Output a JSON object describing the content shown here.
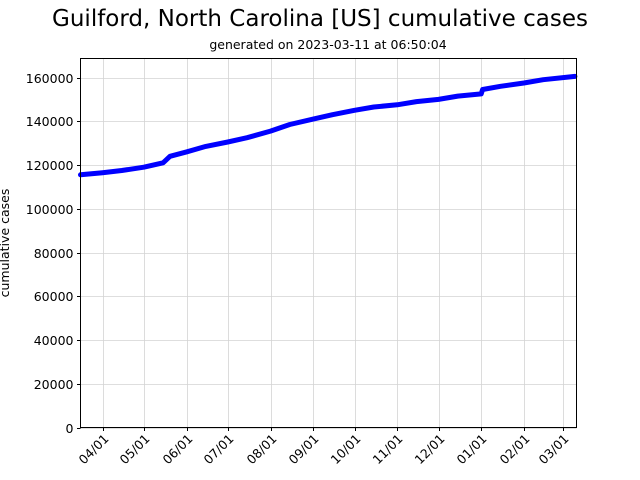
{
  "chart_data": {
    "type": "line",
    "title": "Guilford, North Carolina [US] cumulative cases",
    "subtitle": "generated on 2023-03-11 at 06:50:04",
    "xlabel": "",
    "ylabel": "cumulative cases",
    "ylim": [
      0,
      168000
    ],
    "grid": true,
    "legend": null,
    "line_color": "#0000ff",
    "x_ticks": [
      "04/01",
      "05/01",
      "06/01",
      "07/01",
      "08/01",
      "09/01",
      "10/01",
      "11/01",
      "12/01",
      "01/01",
      "02/01",
      "03/01"
    ],
    "y_ticks": [
      0,
      20000,
      40000,
      60000,
      80000,
      100000,
      120000,
      140000,
      160000
    ],
    "series": [
      {
        "name": "cumulative cases",
        "x": [
          "2022-03-16",
          "2022-04-01",
          "2022-04-15",
          "2022-05-01",
          "2022-05-15",
          "2022-05-20",
          "2022-06-01",
          "2022-06-15",
          "2022-07-01",
          "2022-07-15",
          "2022-08-01",
          "2022-08-15",
          "2022-09-01",
          "2022-09-15",
          "2022-10-01",
          "2022-10-15",
          "2022-11-01",
          "2022-11-15",
          "2022-12-01",
          "2022-12-15",
          "2023-01-01",
          "2023-01-02",
          "2023-01-15",
          "2023-02-01",
          "2023-02-15",
          "2023-03-10"
        ],
        "values": [
          115500,
          116500,
          117500,
          119000,
          121000,
          124000,
          126000,
          128500,
          130500,
          132500,
          135500,
          138500,
          141000,
          143000,
          145000,
          146500,
          147500,
          149000,
          150000,
          151500,
          152500,
          154500,
          156000,
          157500,
          159000,
          160500
        ]
      }
    ]
  }
}
